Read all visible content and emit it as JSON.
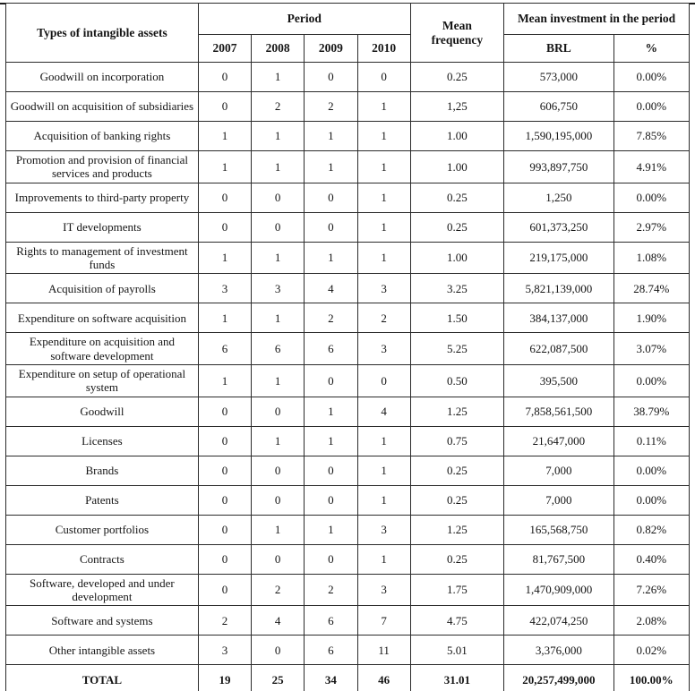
{
  "table": {
    "headers": {
      "types": "Types of intangible assets",
      "period": "Period",
      "years": [
        "2007",
        "2008",
        "2009",
        "2010"
      ],
      "mean_frequency": "Mean frequency",
      "mean_investment": "Mean investment in the period",
      "brl": "BRL",
      "percent": "%"
    },
    "rows": [
      {
        "label": "Goodwill on incorporation",
        "values": [
          "0",
          "1",
          "0",
          "0",
          "0.25",
          "573,000",
          "0.00%"
        ]
      },
      {
        "label": "Goodwill on acquisition of subsidiaries",
        "values": [
          "0",
          "2",
          "2",
          "1",
          "1,25",
          "606,750",
          "0.00%"
        ]
      },
      {
        "label": "Acquisition of banking rights",
        "values": [
          "1",
          "1",
          "1",
          "1",
          "1.00",
          "1,590,195,000",
          "7.85%"
        ]
      },
      {
        "label": "Promotion and provision of financial services and products",
        "values": [
          "1",
          "1",
          "1",
          "1",
          "1.00",
          "993,897,750",
          "4.91%"
        ]
      },
      {
        "label": "Improvements to third-party property",
        "values": [
          "0",
          "0",
          "0",
          "1",
          "0.25",
          "1,250",
          "0.00%"
        ]
      },
      {
        "label": "IT developments",
        "values": [
          "0",
          "0",
          "0",
          "1",
          "0.25",
          "601,373,250",
          "2.97%"
        ]
      },
      {
        "label": "Rights to management of investment funds",
        "values": [
          "1",
          "1",
          "1",
          "1",
          "1.00",
          "219,175,000",
          "1.08%"
        ]
      },
      {
        "label": "Acquisition of payrolls",
        "values": [
          "3",
          "3",
          "4",
          "3",
          "3.25",
          "5,821,139,000",
          "28.74%"
        ]
      },
      {
        "label": "Expenditure on software acquisition",
        "values": [
          "1",
          "1",
          "2",
          "2",
          "1.50",
          "384,137,000",
          "1.90%"
        ]
      },
      {
        "label": "Expenditure on acquisition and software development",
        "values": [
          "6",
          "6",
          "6",
          "3",
          "5.25",
          "622,087,500",
          "3.07%"
        ]
      },
      {
        "label": "Expenditure on setup of operational system",
        "values": [
          "1",
          "1",
          "0",
          "0",
          "0.50",
          "395,500",
          "0.00%"
        ]
      },
      {
        "label": "Goodwill",
        "values": [
          "0",
          "0",
          "1",
          "4",
          "1.25",
          "7,858,561,500",
          "38.79%"
        ]
      },
      {
        "label": "Licenses",
        "values": [
          "0",
          "1",
          "1",
          "1",
          "0.75",
          "21,647,000",
          "0.11%"
        ]
      },
      {
        "label": "Brands",
        "values": [
          "0",
          "0",
          "0",
          "1",
          "0.25",
          "7,000",
          "0.00%"
        ]
      },
      {
        "label": "Patents",
        "values": [
          "0",
          "0",
          "0",
          "1",
          "0.25",
          "7,000",
          "0.00%"
        ]
      },
      {
        "label": "Customer portfolios",
        "values": [
          "0",
          "1",
          "1",
          "3",
          "1.25",
          "165,568,750",
          "0.82%"
        ]
      },
      {
        "label": "Contracts",
        "values": [
          "0",
          "0",
          "0",
          "1",
          "0.25",
          "81,767,500",
          "0.40%"
        ]
      },
      {
        "label": "Software, developed and under development",
        "values": [
          "0",
          "2",
          "2",
          "3",
          "1.75",
          "1,470,909,000",
          "7.26%"
        ]
      },
      {
        "label": "Software and systems",
        "values": [
          "2",
          "4",
          "6",
          "7",
          "4.75",
          "422,074,250",
          "2.08%"
        ]
      },
      {
        "label": "Other intangible assets",
        "values": [
          "3",
          "0",
          "6",
          "11",
          "5.01",
          "3,376,000",
          "0.02%"
        ]
      }
    ],
    "total": {
      "label": "TOTAL",
      "values": [
        "19",
        "25",
        "34",
        "46",
        "31.01",
        "20,257,499,000",
        "100.00%"
      ]
    }
  }
}
